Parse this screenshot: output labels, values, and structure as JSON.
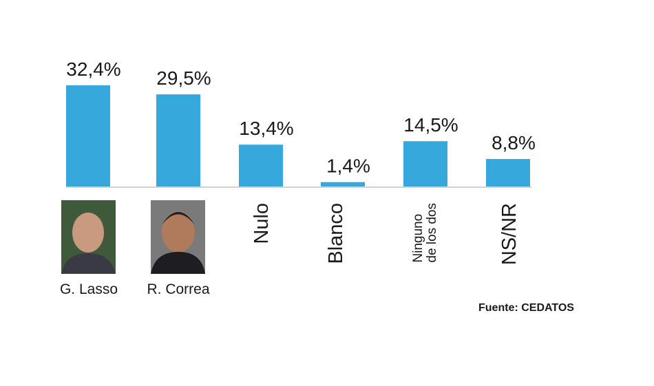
{
  "chart_data": {
    "type": "bar",
    "categories": [
      "G. Lasso",
      "R. Correa",
      "Nulo",
      "Blanco",
      "Ninguno\nde los dos",
      "NS/NR"
    ],
    "values": [
      32.4,
      29.5,
      13.4,
      1.4,
      14.5,
      8.8
    ],
    "value_labels": [
      "32,4%",
      "29,5%",
      "13,4%",
      "1,4%",
      "14,5%",
      "8,8%"
    ],
    "color": "#36a8dc",
    "source": "Fuente: CEDATOS"
  }
}
